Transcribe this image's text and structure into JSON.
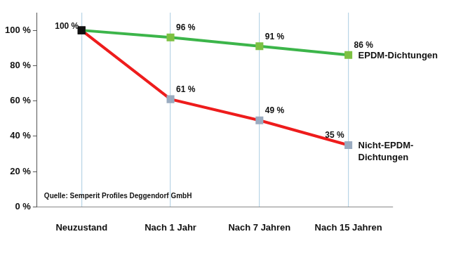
{
  "chart_data": {
    "type": "line",
    "categories": [
      "Neuzustand",
      "Nach 1 Jahr",
      "Nach 7 Jahren",
      "Nach 15 Jahren"
    ],
    "series": [
      {
        "name": "EPDM-Dichtungen",
        "color": "#3cb54a",
        "colors": [
          "#111111",
          "#7dc142",
          "#7dc142",
          "#7dc142"
        ],
        "marker": "square",
        "values": [
          100,
          96,
          91,
          86
        ],
        "value_labels": [
          "100 %",
          "96 %",
          "91 %",
          "86 %"
        ]
      },
      {
        "name": "Nicht-EPDM-Dichtungen",
        "color": "#ee1c1c",
        "colors": [
          "#111111",
          "#9aabc0",
          "#9aabc0",
          "#9aabc0"
        ],
        "marker": "square",
        "values": [
          100,
          61,
          49,
          35
        ],
        "value_labels": [
          null,
          "61 %",
          "49 %",
          "35 %"
        ]
      }
    ],
    "ylim": [
      0,
      110
    ],
    "yticks": [
      {
        "value": 0,
        "label": "0 %"
      },
      {
        "value": 20,
        "label": "20 %"
      },
      {
        "value": 40,
        "label": "40 %"
      },
      {
        "value": 60,
        "label": "60 %"
      },
      {
        "value": 80,
        "label": "80 %"
      },
      {
        "value": 100,
        "label": "100 %"
      }
    ],
    "grid": "x",
    "data_labels": true,
    "annotations": [
      "Quelle: Semperit Profiles Deggendorf GmbH"
    ]
  }
}
